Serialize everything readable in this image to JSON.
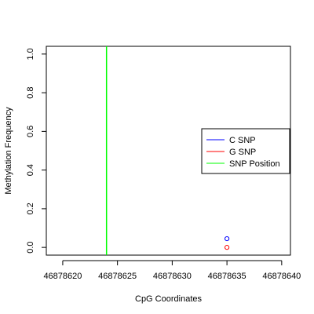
{
  "chart_data": {
    "type": "scatter",
    "xlabel": "CpG Coordinates",
    "ylabel": "Methylation Frequency",
    "xlim": [
      46878618.5,
      46878640.8
    ],
    "ylim": [
      -0.04,
      1.04
    ],
    "x_ticks": [
      46878620,
      46878625,
      46878630,
      46878635,
      46878640
    ],
    "x_tick_labels": [
      "46878620",
      "46878625",
      "46878630",
      "46878635",
      "46878640"
    ],
    "y_ticks": [
      0.0,
      0.2,
      0.4,
      0.6,
      0.8,
      1.0
    ],
    "y_tick_labels": [
      "0.0",
      "0.2",
      "0.4",
      "0.6",
      "0.8",
      "1.0"
    ],
    "grid": false,
    "legend_position": "right",
    "series": [
      {
        "name": "C SNP",
        "color": "#0000ff",
        "points": [
          {
            "x": 46878635,
            "y": 0.045
          }
        ]
      },
      {
        "name": "G SNP",
        "color": "#ff0000",
        "points": [
          {
            "x": 46878635,
            "y": 0.0
          }
        ]
      }
    ],
    "snp_position": {
      "name": "SNP Position",
      "color": "#00ff00",
      "x": 46878624
    },
    "legend": [
      {
        "label": "C SNP",
        "color": "#0000ff"
      },
      {
        "label": "G SNP",
        "color": "#ff0000"
      },
      {
        "label": "SNP Position",
        "color": "#00ff00"
      }
    ]
  }
}
